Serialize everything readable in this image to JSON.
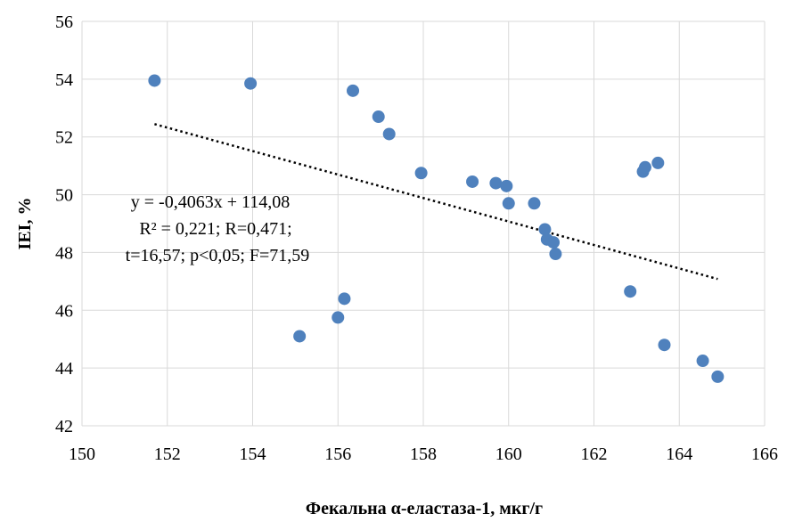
{
  "chart_data": {
    "type": "scatter",
    "title": "",
    "xlabel": "Фекальна α-еластаза-1, мкг/г",
    "ylabel": "IEI, %",
    "xlim": [
      150,
      166
    ],
    "ylim": [
      42,
      56
    ],
    "xticks": [
      "150",
      "152",
      "154",
      "156",
      "158",
      "160",
      "162",
      "164",
      "166"
    ],
    "yticks": [
      "42",
      "44",
      "46",
      "48",
      "50",
      "52",
      "54",
      "56"
    ],
    "grid": {
      "horizontal": true,
      "vertical": true
    },
    "marker_color": "#4f81bd",
    "trendline": {
      "type": "linear",
      "slope": -0.4063,
      "intercept": 114.08,
      "x_range": [
        151.7,
        164.9
      ],
      "style": "dotted",
      "color": "#000000"
    },
    "annotation": [
      "y = -0,4063x + 114,08",
      "R² = 0,221; R=0,471;",
      "t=16,57; p<0,05;  F=71,59"
    ],
    "series": [
      {
        "points": [
          {
            "x": 151.7,
            "y": 53.95
          },
          {
            "x": 153.95,
            "y": 53.85
          },
          {
            "x": 155.1,
            "y": 45.1
          },
          {
            "x": 156.0,
            "y": 45.75
          },
          {
            "x": 156.15,
            "y": 46.4
          },
          {
            "x": 156.35,
            "y": 53.6
          },
          {
            "x": 156.95,
            "y": 52.7
          },
          {
            "x": 157.2,
            "y": 52.1
          },
          {
            "x": 157.95,
            "y": 50.75
          },
          {
            "x": 159.15,
            "y": 50.45
          },
          {
            "x": 159.7,
            "y": 50.4
          },
          {
            "x": 159.95,
            "y": 50.3
          },
          {
            "x": 160.0,
            "y": 49.7
          },
          {
            "x": 160.6,
            "y": 49.7
          },
          {
            "x": 160.85,
            "y": 48.8
          },
          {
            "x": 160.9,
            "y": 48.45
          },
          {
            "x": 161.05,
            "y": 48.35
          },
          {
            "x": 161.1,
            "y": 47.95
          },
          {
            "x": 162.85,
            "y": 46.65
          },
          {
            "x": 163.15,
            "y": 50.8
          },
          {
            "x": 163.2,
            "y": 50.95
          },
          {
            "x": 163.5,
            "y": 51.1
          },
          {
            "x": 163.65,
            "y": 44.8
          },
          {
            "x": 164.55,
            "y": 44.25
          },
          {
            "x": 164.9,
            "y": 43.7
          }
        ]
      }
    ]
  }
}
